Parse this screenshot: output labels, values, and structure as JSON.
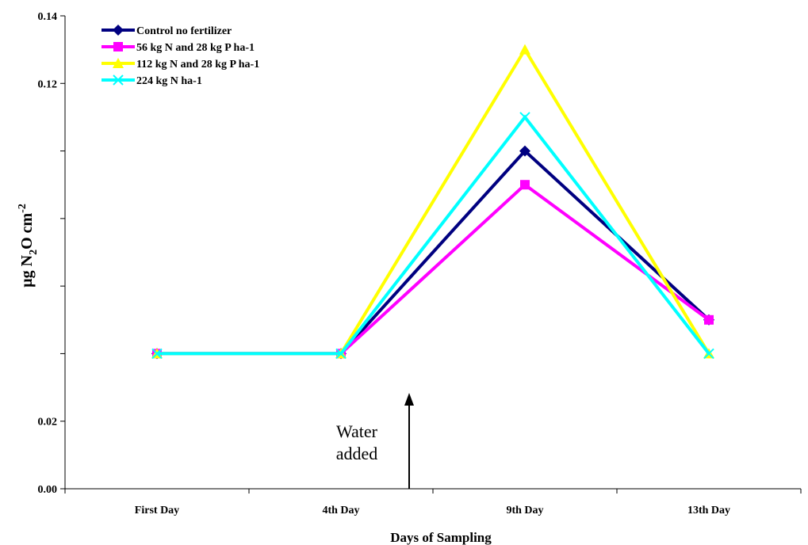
{
  "chart_data": {
    "type": "line",
    "title": "",
    "xlabel": "Days of Sampling",
    "ylabel": {
      "pre": "µg N",
      "sub1": "2",
      "mid": "O cm",
      "sup": "-2"
    },
    "categories": [
      "First Day",
      "4th Day",
      "9th Day",
      "13th Day"
    ],
    "ylim": [
      0,
      0.14
    ],
    "yticks": [
      {
        "value": 0.0,
        "label": "0.00"
      },
      {
        "value": 0.02,
        "label": "0.02"
      },
      {
        "value": 0.04,
        "label": ""
      },
      {
        "value": 0.06,
        "label": ""
      },
      {
        "value": 0.08,
        "label": ""
      },
      {
        "value": 0.1,
        "label": ""
      },
      {
        "value": 0.12,
        "label": "0.12"
      },
      {
        "value": 0.14,
        "label": "0.14"
      }
    ],
    "grid": false,
    "legend_position": "top-left",
    "series": [
      {
        "name": "Control no fertilizer",
        "color": "#000080",
        "marker": "diamond",
        "values": [
          0.04,
          0.04,
          0.1,
          0.05
        ]
      },
      {
        "name": "56 kg N and 28 kg P ha-1",
        "color": "#FF00FF",
        "marker": "square",
        "values": [
          0.04,
          0.04,
          0.09,
          0.05
        ]
      },
      {
        "name": "112 kg N and 28 kg P ha-1",
        "color": "#FFFF00",
        "marker": "triangle",
        "values": [
          0.04,
          0.04,
          0.13,
          0.04
        ]
      },
      {
        "name": "224 kg N ha-1",
        "color": "#00FFFF",
        "marker": "x",
        "values": [
          0.04,
          0.04,
          0.11,
          0.04
        ]
      }
    ],
    "annotations": [
      {
        "text_lines": [
          "Water",
          "added"
        ],
        "arrow": "up",
        "x_between": [
          1,
          2
        ]
      }
    ]
  }
}
